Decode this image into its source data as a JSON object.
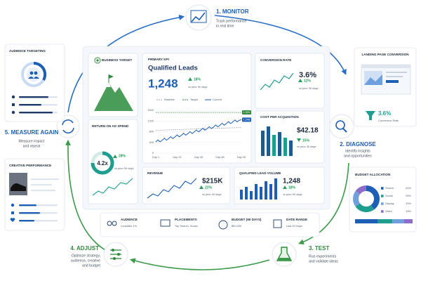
{
  "steps": [
    {
      "title": "1. MONITOR",
      "text": [
        "Track performance",
        "in real time"
      ]
    },
    {
      "title": "2. DIAGNOSE",
      "text": [
        "Identify insights",
        "and opportunities"
      ]
    },
    {
      "title": "3. TEST",
      "text": [
        "Run experiments",
        "and validate ideas"
      ]
    },
    {
      "title": "4. ADJUST",
      "text": [
        "Optimize strategy,",
        "audience, creative",
        "and budget"
      ]
    },
    {
      "title": "5. MEASURE AGAIN",
      "text": [
        "Measure impact",
        "and repeat"
      ]
    }
  ],
  "side_cards": {
    "audience_targeting": "AUDIENCE TARGETING",
    "creative_performance": "CREATIVE PERFORMANCE",
    "landing_page": {
      "title": "LANDING PAGE CONVERSION",
      "value": "3.6%",
      "label": "Conversion Rate"
    },
    "budget": {
      "title": "BUDGET ALLOCATION",
      "slices": [
        {
          "name": "Search",
          "value": 40,
          "label": "40%",
          "color": "#1d5fb4"
        },
        {
          "name": "Social",
          "value": 25,
          "label": "25%",
          "color": "#1f9e8f"
        },
        {
          "name": "Display",
          "value": 20,
          "label": "20%",
          "color": "#6fa0dd"
        },
        {
          "name": "Video",
          "value": 15,
          "label": "15%",
          "color": "#8e6cc9"
        }
      ]
    }
  },
  "dashboard": {
    "business_target": "BUSINESS TARGET",
    "primary_kpi": {
      "eyebrow": "PRIMARY KPI",
      "title": "Qualified Leads",
      "value": "1,248",
      "change": "18%",
      "compare": "vs prior 90 days",
      "legend": [
        "Baseline",
        "Target",
        "Current"
      ],
      "ylim": [
        0,
        1600
      ],
      "yticks": [
        0,
        400,
        800,
        1200,
        1600
      ],
      "xticks": [
        "Day 1",
        "Day 22",
        "Day 45",
        "Day 68",
        "Day 90"
      ],
      "target": {
        "value": 1520,
        "label": "1,520"
      },
      "current": {
        "value": 1248,
        "label": "1,248"
      }
    },
    "conversion_rate": {
      "title": "CONVERSION RATE",
      "value": "3.6%",
      "change": "12%",
      "compare": "vs prior 30 days"
    },
    "cost_per_acquisition": {
      "title": "COST PER ACQUISITION",
      "value": "$42.18",
      "change": "15%",
      "compare": "vs prior 30 days"
    },
    "return_on_ad_spend": {
      "title": "RETURN ON AD SPEND",
      "value": "4.2x",
      "change": "28%",
      "compare": "vs prior 90 days"
    },
    "revenue": {
      "title": "REVENUE",
      "value": "$215K",
      "change": "22%",
      "compare": "vs prior 90 days"
    },
    "qualified_lead_volume": {
      "title": "QUALIFIED LEAD VOLUME",
      "value": "1,248",
      "change": "18%",
      "compare": "vs prior 90 days"
    },
    "settings": [
      {
        "label": "AUDIENCE",
        "value": "Lookalike 1%"
      },
      {
        "label": "PLACEMENTS",
        "value": "Top Search, Social"
      },
      {
        "label": "BUDGET (90 DAYS)",
        "value": "$50,000"
      },
      {
        "label": "DATE RANGE",
        "value": "Last 90 Days"
      }
    ]
  }
}
